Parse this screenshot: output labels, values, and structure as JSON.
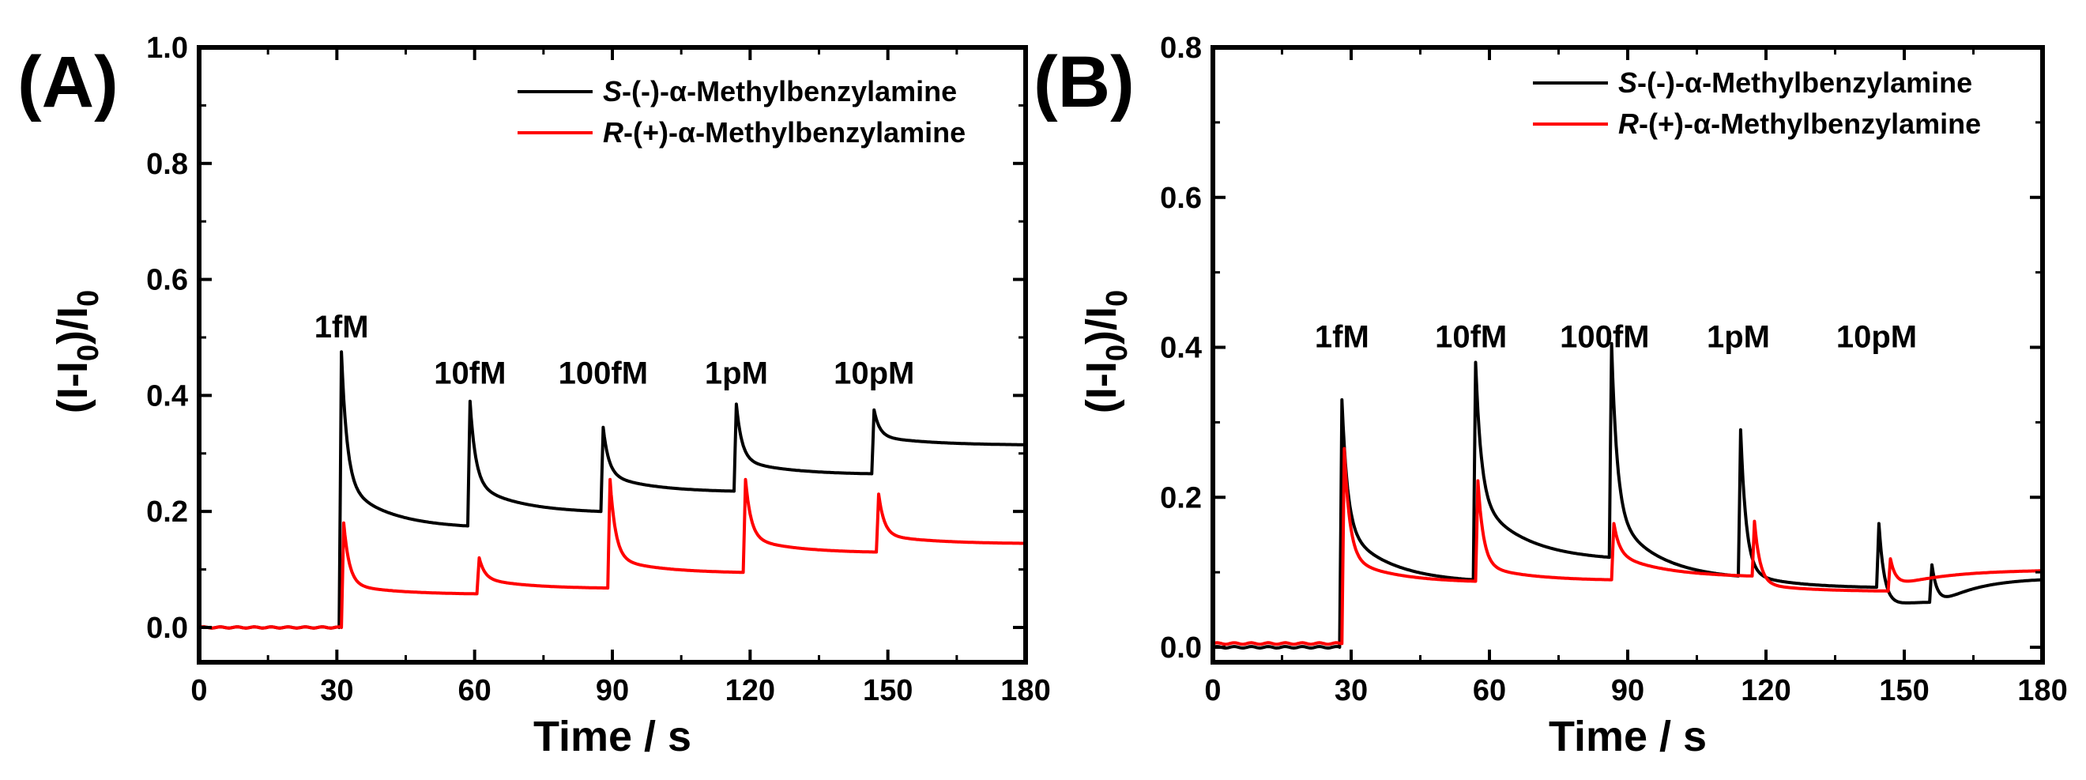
{
  "chart_data": [
    {
      "panel": "(A)",
      "type": "line",
      "xlabel": "Time / s",
      "ylabel": "(I-I0)/I0",
      "xlim": [
        0,
        180
      ],
      "ylim": [
        -0.06,
        1.0
      ],
      "xticks": [
        0,
        30,
        60,
        90,
        120,
        150,
        180
      ],
      "yticks": [
        0.0,
        0.2,
        0.4,
        0.6,
        0.8,
        1.0
      ],
      "ytick_labels": [
        "0.0",
        "0.2",
        "0.4",
        "0.6",
        "0.8",
        "1.0"
      ],
      "legend": {
        "placement": "top-right",
        "entries": [
          {
            "italic": "S",
            "text": "-(-)-α-Methylbenzylamine",
            "color": "#000000"
          },
          {
            "italic": "R",
            "text": "-(+)-α-Methylbenzylamine",
            "color": "#ff0000"
          }
        ]
      },
      "annotations": [
        {
          "text": "1fM",
          "x": 31,
          "y": 0.5
        },
        {
          "text": "10fM",
          "x": 59,
          "y": 0.42
        },
        {
          "text": "100fM",
          "x": 88,
          "y": 0.42
        },
        {
          "text": "1pM",
          "x": 117,
          "y": 0.42
        },
        {
          "text": "10pM",
          "x": 147,
          "y": 0.42
        }
      ],
      "series": [
        {
          "name": "S-(-)-α-Methylbenzylamine",
          "color": "#000000",
          "baseline": 0.0,
          "onset": 30.5,
          "events": [
            {
              "t": 31,
              "peak": 0.475,
              "level": 0.25,
              "end": 0.175
            },
            {
              "t": 59,
              "peak": 0.39,
              "level": 0.25,
              "end": 0.2
            },
            {
              "t": 88,
              "peak": 0.345,
              "level": 0.265,
              "end": 0.235
            },
            {
              "t": 117,
              "peak": 0.385,
              "level": 0.29,
              "end": 0.265
            },
            {
              "t": 147,
              "peak": 0.375,
              "level": 0.33,
              "end": 0.315
            }
          ]
        },
        {
          "name": "R-(+)-α-Methylbenzylamine",
          "color": "#ff0000",
          "baseline": 0.0,
          "onset": 31.0,
          "events": [
            {
              "t": 31.5,
              "peak": 0.18,
              "level": 0.075,
              "end": 0.058
            },
            {
              "t": 61,
              "peak": 0.12,
              "level": 0.085,
              "end": 0.068
            },
            {
              "t": 89.5,
              "peak": 0.255,
              "level": 0.12,
              "end": 0.095
            },
            {
              "t": 119,
              "peak": 0.255,
              "level": 0.155,
              "end": 0.13
            },
            {
              "t": 148,
              "peak": 0.23,
              "level": 0.16,
              "end": 0.145
            }
          ]
        }
      ]
    },
    {
      "panel": "(B)",
      "type": "line",
      "xlabel": "Time / s",
      "ylabel": "(I-I0)/I0",
      "xlim": [
        0,
        180
      ],
      "ylim": [
        -0.02,
        0.8
      ],
      "xticks": [
        0,
        30,
        60,
        90,
        120,
        150,
        180
      ],
      "yticks": [
        0.0,
        0.2,
        0.4,
        0.6,
        0.8
      ],
      "ytick_labels": [
        "0.0",
        "0.2",
        "0.4",
        "0.6",
        "0.8"
      ],
      "legend": {
        "placement": "top-right",
        "entries": [
          {
            "italic": "S",
            "text": "-(-)-α-Methylbenzylamine",
            "color": "#000000"
          },
          {
            "italic": "R",
            "text": "-(+)-α-Methylbenzylamine",
            "color": "#ff0000"
          }
        ]
      },
      "annotations": [
        {
          "text": "1fM",
          "x": 28,
          "y": 0.4
        },
        {
          "text": "10fM",
          "x": 56,
          "y": 0.4
        },
        {
          "text": "100fM",
          "x": 85,
          "y": 0.4
        },
        {
          "text": "1pM",
          "x": 114,
          "y": 0.4
        },
        {
          "text": "10pM",
          "x": 144,
          "y": 0.4
        }
      ],
      "series": [
        {
          "name": "S-(-)-α-Methylbenzylamine",
          "color": "#000000",
          "baseline": 0.0,
          "onset": 27.5,
          "events": [
            {
              "t": 28,
              "peak": 0.33,
              "level": 0.16,
              "end": 0.09
            },
            {
              "t": 57,
              "peak": 0.38,
              "level": 0.2,
              "end": 0.12
            },
            {
              "t": 86.5,
              "peak": 0.405,
              "level": 0.18,
              "end": 0.095
            },
            {
              "t": 114.5,
              "peak": 0.29,
              "level": 0.1,
              "end": 0.08
            },
            {
              "t": 144.5,
              "peak": 0.165,
              "level": 0.05,
              "end": 0.06
            },
            {
              "t": 156,
              "peak": 0.11,
              "level": 0.05,
              "end": 0.09
            }
          ]
        },
        {
          "name": "R-(+)-α-Methylbenzylamine",
          "color": "#ff0000",
          "baseline": 0.005,
          "onset": 28.0,
          "events": [
            {
              "t": 28.5,
              "peak": 0.265,
              "level": 0.12,
              "end": 0.088
            },
            {
              "t": 57.5,
              "peak": 0.222,
              "level": 0.11,
              "end": 0.09
            },
            {
              "t": 87,
              "peak": 0.165,
              "level": 0.125,
              "end": 0.095
            },
            {
              "t": 117.5,
              "peak": 0.168,
              "level": 0.085,
              "end": 0.075
            },
            {
              "t": 147,
              "peak": 0.118,
              "level": 0.08,
              "end": 0.102
            }
          ]
        }
      ]
    }
  ]
}
